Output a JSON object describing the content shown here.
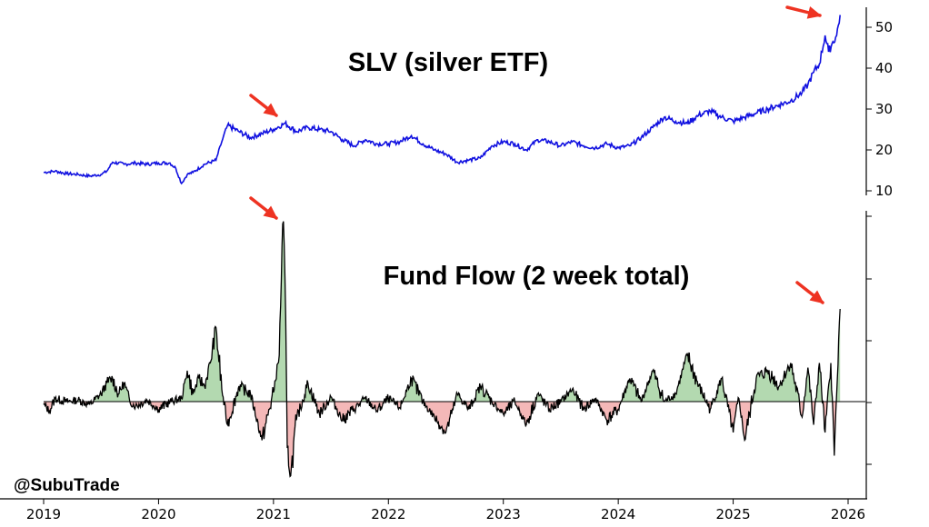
{
  "colors": {
    "price_line": "#1010e0",
    "flow_line": "#000000",
    "positive_fill": "#b3d9b0",
    "negative_fill": "#f4b8b8",
    "annotation": "#ee3322",
    "arrow": "#ee3322"
  },
  "chart_data": [
    {
      "type": "line",
      "title": "SLV (silver ETF)",
      "xlabel": "",
      "ylabel": "",
      "x_ticks": [
        "2019",
        "2020",
        "2021",
        "2022",
        "2023",
        "2024",
        "2025",
        "2026"
      ],
      "y_ticks": [
        10,
        20,
        30,
        40,
        50
      ],
      "xlim": [
        2019.0,
        2026.2
      ],
      "ylim": [
        8,
        55
      ],
      "grid": false,
      "series": [
        {
          "x": [
            2019.0,
            2019.1,
            2019.2,
            2019.3,
            2019.4,
            2019.5,
            2019.55,
            2019.6,
            2019.7,
            2019.8,
            2019.9,
            2020.0,
            2020.1,
            2020.15,
            2020.2,
            2020.25,
            2020.3,
            2020.4,
            2020.5,
            2020.55,
            2020.6,
            2020.7,
            2020.8,
            2020.9,
            2021.0,
            2021.1,
            2021.2,
            2021.3,
            2021.4,
            2021.5,
            2021.6,
            2021.7,
            2021.8,
            2021.9,
            2022.0,
            2022.1,
            2022.2,
            2022.3,
            2022.4,
            2022.5,
            2022.6,
            2022.7,
            2022.8,
            2022.9,
            2023.0,
            2023.1,
            2023.2,
            2023.3,
            2023.4,
            2023.5,
            2023.6,
            2023.7,
            2023.8,
            2023.9,
            2024.0,
            2024.1,
            2024.2,
            2024.3,
            2024.4,
            2024.5,
            2024.6,
            2024.7,
            2024.8,
            2024.9,
            2025.0,
            2025.1,
            2025.2,
            2025.3,
            2025.4,
            2025.5,
            2025.6,
            2025.65,
            2025.7,
            2025.75,
            2025.8,
            2025.83,
            2025.86,
            2025.9,
            2025.93
          ],
          "y": [
            14.5,
            14.8,
            14.2,
            14.0,
            13.6,
            14.0,
            14.8,
            17.0,
            16.5,
            16.8,
            16.5,
            16.8,
            16.8,
            15.5,
            11.8,
            14.0,
            14.5,
            16.5,
            17.5,
            22.0,
            26.0,
            24.5,
            23.0,
            24.0,
            25.0,
            26.5,
            24.5,
            25.5,
            25.0,
            24.5,
            22.5,
            21.0,
            22.5,
            21.5,
            21.5,
            22.0,
            23.5,
            21.5,
            20.0,
            19.0,
            17.0,
            17.5,
            18.0,
            21.0,
            22.0,
            21.5,
            20.0,
            22.5,
            22.0,
            21.0,
            22.0,
            21.0,
            20.5,
            21.5,
            20.5,
            21.0,
            23.0,
            25.5,
            28.0,
            27.0,
            26.5,
            28.5,
            29.5,
            28.0,
            27.0,
            28.0,
            29.0,
            30.0,
            31.0,
            32.0,
            34.0,
            36.0,
            39.0,
            41.0,
            48.0,
            44.0,
            46.0,
            48.0,
            53.0
          ]
        }
      ]
    },
    {
      "type": "area",
      "title": "Fund Flow (2 week total)",
      "xlabel": "",
      "ylabel": "",
      "x_ticks": [
        "2019",
        "2020",
        "2021",
        "2022",
        "2023",
        "2024",
        "2025",
        "2026"
      ],
      "xlim": [
        2019.0,
        2026.2
      ],
      "ylim": [
        -0.5,
        1.2
      ],
      "baseline": 0,
      "grid": false,
      "series": [
        {
          "x": [
            2019.0,
            2019.05,
            2019.1,
            2019.2,
            2019.3,
            2019.4,
            2019.5,
            2019.55,
            2019.6,
            2019.65,
            2019.7,
            2019.75,
            2019.8,
            2019.9,
            2020.0,
            2020.1,
            2020.2,
            2020.25,
            2020.3,
            2020.35,
            2020.4,
            2020.45,
            2020.5,
            2020.55,
            2020.6,
            2020.7,
            2020.8,
            2020.9,
            2021.0,
            2021.05,
            2021.08,
            2021.1,
            2021.12,
            2021.15,
            2021.2,
            2021.3,
            2021.4,
            2021.5,
            2021.6,
            2021.7,
            2021.8,
            2021.9,
            2022.0,
            2022.1,
            2022.2,
            2022.3,
            2022.4,
            2022.5,
            2022.55,
            2022.6,
            2022.7,
            2022.8,
            2022.9,
            2023.0,
            2023.1,
            2023.2,
            2023.3,
            2023.4,
            2023.5,
            2023.6,
            2023.7,
            2023.8,
            2023.9,
            2024.0,
            2024.1,
            2024.2,
            2024.3,
            2024.4,
            2024.5,
            2024.6,
            2024.7,
            2024.8,
            2024.9,
            2025.0,
            2025.05,
            2025.1,
            2025.2,
            2025.3,
            2025.4,
            2025.5,
            2025.6,
            2025.65,
            2025.7,
            2025.75,
            2025.8,
            2025.85,
            2025.88,
            2025.9,
            2025.93
          ],
          "y": [
            -0.02,
            -0.06,
            0.02,
            0.0,
            0.01,
            -0.02,
            0.05,
            0.12,
            0.15,
            0.05,
            0.12,
            0.0,
            -0.03,
            0.01,
            -0.05,
            0.0,
            0.02,
            0.2,
            0.05,
            0.15,
            0.1,
            0.25,
            0.48,
            0.08,
            -0.15,
            0.1,
            0.05,
            -0.25,
            0.06,
            0.3,
            1.15,
            0.8,
            -0.3,
            -0.48,
            -0.12,
            0.12,
            -0.08,
            0.03,
            -0.12,
            -0.05,
            0.02,
            -0.06,
            0.02,
            -0.04,
            0.15,
            0.0,
            -0.1,
            -0.2,
            -0.08,
            0.05,
            -0.05,
            0.1,
            0.0,
            -0.08,
            0.0,
            -0.15,
            0.05,
            -0.05,
            0.0,
            0.08,
            -0.05,
            0.02,
            -0.12,
            -0.05,
            0.15,
            0.0,
            0.2,
            0.0,
            0.05,
            0.3,
            0.1,
            -0.05,
            0.15,
            -0.2,
            0.02,
            -0.25,
            0.15,
            0.2,
            0.1,
            0.25,
            -0.1,
            0.22,
            -0.15,
            0.25,
            -0.2,
            0.25,
            -0.35,
            0.05,
            0.6
          ]
        }
      ]
    }
  ],
  "annotations": {
    "slv_title": "SLV (silver ETF)",
    "flow_title": "Fund Flow (2 week total)",
    "watermark": "@SubuTrade"
  }
}
